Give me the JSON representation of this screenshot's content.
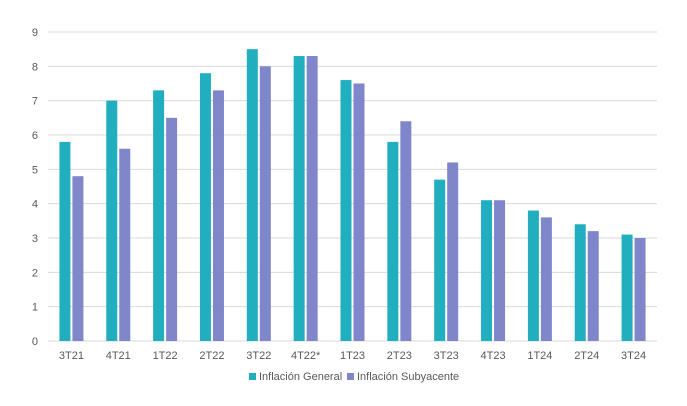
{
  "chart_data": {
    "type": "bar",
    "categories": [
      "3T21",
      "4T21",
      "1T22",
      "2T22",
      "3T22",
      "4T22*",
      "1T23",
      "2T23",
      "3T23",
      "4T23",
      "1T24",
      "2T24",
      "3T24"
    ],
    "series": [
      {
        "name": "Inflación General",
        "color": "#21afc0",
        "values": [
          5.8,
          7.0,
          7.3,
          7.8,
          8.5,
          8.3,
          7.6,
          5.8,
          4.7,
          4.1,
          3.8,
          3.4,
          3.1
        ]
      },
      {
        "name": "Inflación Subyacente",
        "color": "#7f86c9",
        "values": [
          4.8,
          5.6,
          6.5,
          7.3,
          8.0,
          8.3,
          7.5,
          6.4,
          5.2,
          4.1,
          3.6,
          3.2,
          3.0
        ]
      }
    ],
    "ylim": [
      0,
      9
    ],
    "yticks": [
      "0",
      "1",
      "2",
      "3",
      "4",
      "5",
      "6",
      "7",
      "8",
      "9"
    ],
    "grid": true,
    "legend_position": "bottom-center",
    "gridline_color": "#d9d9d9"
  }
}
